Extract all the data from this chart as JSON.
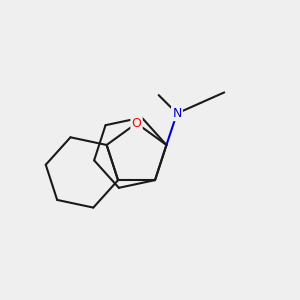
{
  "bg_color": "#efefef",
  "bond_color": "#1a1a1a",
  "o_color": "#ff0000",
  "n_color": "#0000cc",
  "line_width": 1.5,
  "figsize": [
    3.0,
    3.0
  ],
  "dpi": 100
}
